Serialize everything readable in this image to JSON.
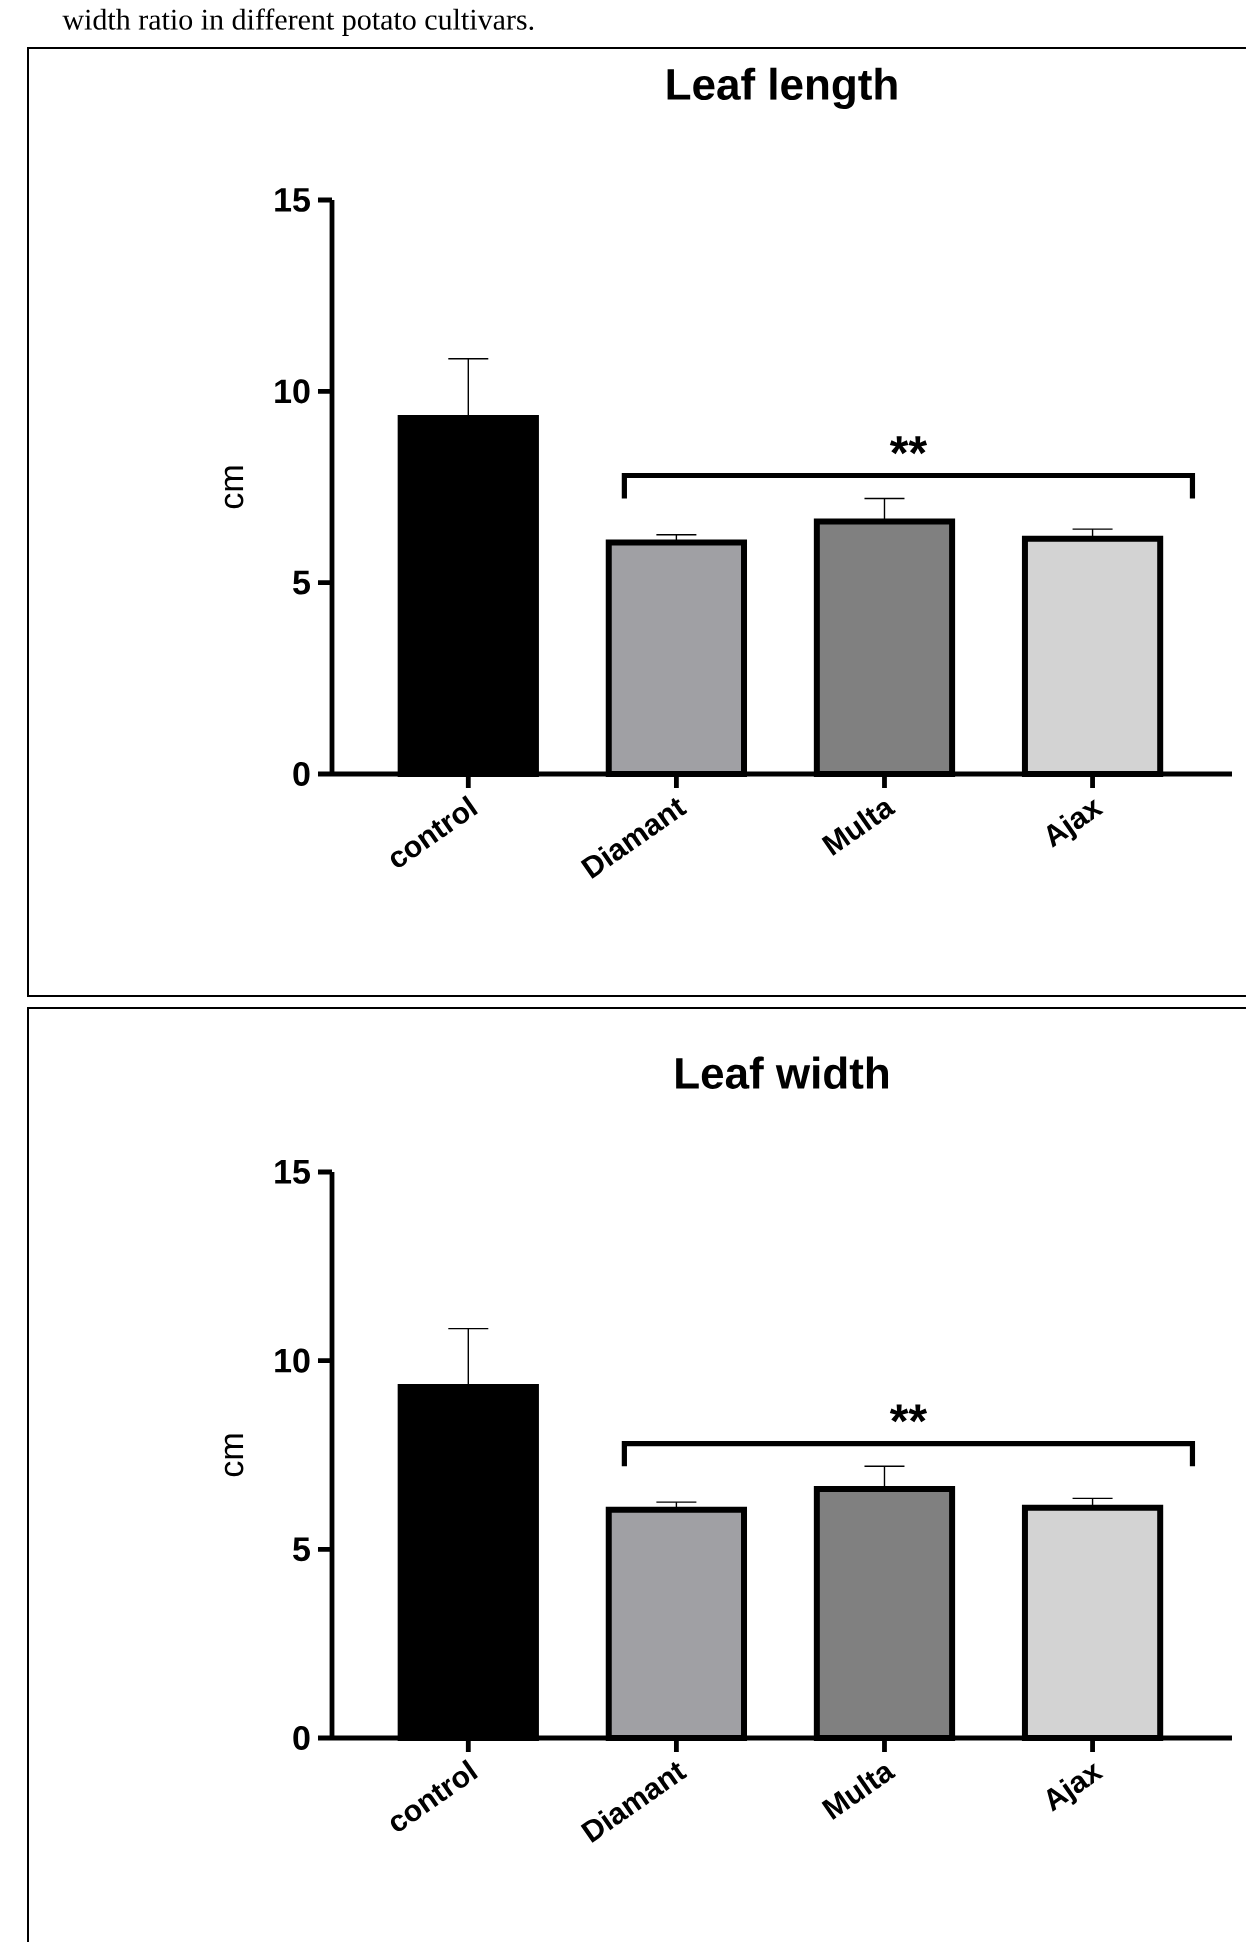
{
  "chart_data": [
    {
      "type": "bar",
      "title": "Leaf length",
      "ylabel": "cm",
      "categories": [
        "control",
        "Diamant",
        "Multa",
        "Ajax"
      ],
      "values": [
        9.3,
        6.05,
        6.6,
        6.15
      ],
      "errors": [
        1.55,
        0.2,
        0.6,
        0.25
      ],
      "colors": [
        "#000000",
        "#a0a0a4",
        "#808080",
        "#d3d3d3"
      ],
      "ylim": [
        0,
        15
      ],
      "yticks": [
        0,
        5,
        10,
        15
      ],
      "annotations": [
        "**",
        "width ratio in different potato cultivars."
      ]
    },
    {
      "type": "bar",
      "title": "Leaf width",
      "ylabel": "cm",
      "categories": [
        "control",
        "Diamant",
        "Multa",
        "Ajax"
      ],
      "values": [
        9.3,
        6.05,
        6.6,
        6.1
      ],
      "errors": [
        1.55,
        0.2,
        0.6,
        0.25
      ],
      "colors": [
        "#000000",
        "#a0a0a4",
        "#808080",
        "#d3d3d3"
      ],
      "ylim": [
        0,
        15
      ],
      "yticks": [
        0,
        5,
        10,
        15
      ],
      "annotations": [
        "**"
      ]
    }
  ]
}
